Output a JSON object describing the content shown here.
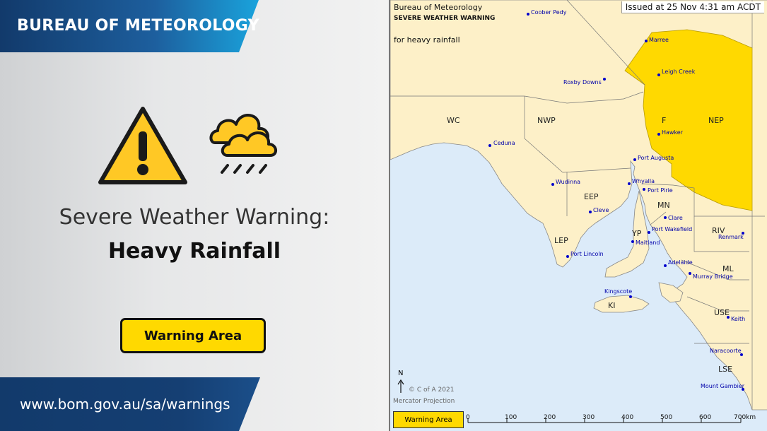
{
  "left": {
    "brand": "BUREAU OF METEOROLOGY",
    "title": "Severe Weather Warning:",
    "hazard": "Heavy Rainfall",
    "area_button": "Warning Area",
    "url": "www.bom.gov.au/sa/warnings",
    "icons": [
      "warning-triangle-icon",
      "rain-cloud-icon"
    ]
  },
  "map": {
    "agency": "Bureau of Meteorology",
    "warning_type": "SEVERE WEATHER WARNING",
    "hazard_text": "for heavy rainfall",
    "issued": "Issued at 25 Nov 4:31 am ACDT",
    "north": "N",
    "copyright": "© C of A 2021",
    "projection": "Mercator Projection",
    "legend": "Warning Area",
    "scale": [
      "0",
      "100",
      "200",
      "300",
      "400",
      "500",
      "600",
      "700km"
    ],
    "districts": [
      "WC",
      "NWP",
      "F",
      "NEP",
      "EEP",
      "MN",
      "YP",
      "LEP",
      "RIV",
      "ML",
      "KI",
      "USE",
      "LSE"
    ],
    "towns": [
      "Coober Pedy",
      "Marree",
      "Leigh Creek",
      "Roxby Downs",
      "Hawker",
      "Ceduna",
      "Port Augusta",
      "Wudinna",
      "Whyalla",
      "Port Pirie",
      "Cleve",
      "Clare",
      "Port Wakefield",
      "Renmark",
      "Maitland",
      "Port Lincoln",
      "Adelaide",
      "Murray Bridge",
      "Kingscote",
      "Keith",
      "Naracoorte",
      "Mount Gambier"
    ]
  },
  "colors": {
    "warning": "#ffd900",
    "land": "#fdf0c8",
    "sea": "#dcebf9",
    "navy": "#123a6b"
  }
}
